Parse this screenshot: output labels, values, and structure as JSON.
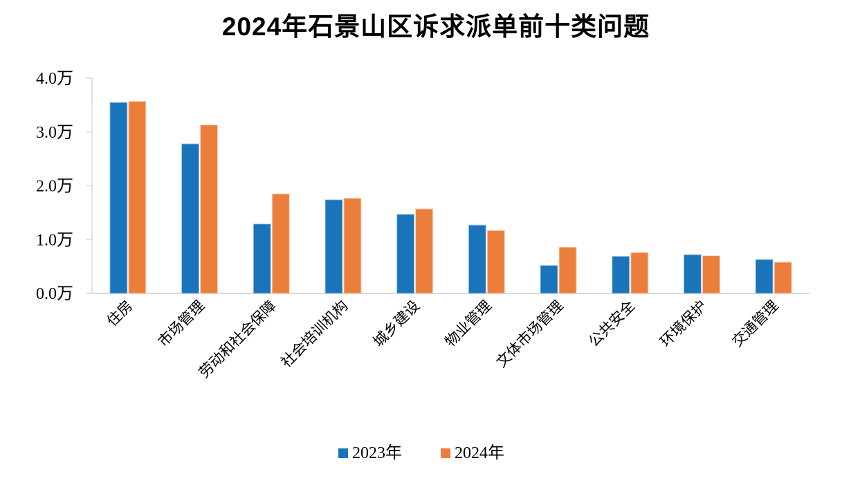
{
  "chart_data": {
    "type": "bar",
    "title": "2024年石景山区诉求派单前十类问题",
    "unit": "万",
    "categories": [
      "住房",
      "市场管理",
      "劳动和社会保障",
      "社会培训机构",
      "城乡建设",
      "物业管理",
      "文体市场管理",
      "公共安全",
      "环境保护",
      "交通管理"
    ],
    "series": [
      {
        "name": "2023年",
        "color": "#1A74B9",
        "edge_color": "#A9CBE9",
        "values": [
          3.55,
          2.78,
          1.29,
          1.74,
          1.47,
          1.27,
          0.52,
          0.69,
          0.72,
          0.63
        ]
      },
      {
        "name": "2024年",
        "color": "#EC7E3C",
        "edge_color": "#F8D4BA",
        "values": [
          3.57,
          3.13,
          1.85,
          1.77,
          1.57,
          1.17,
          0.86,
          0.76,
          0.7,
          0.58
        ]
      }
    ],
    "ylim": [
      0,
      4
    ],
    "y_tick_labels": [
      "0.0万",
      "1.0万",
      "2.0万",
      "3.0万",
      "4.0万"
    ],
    "grid": false,
    "legend_position": "bottom",
    "axis_color": "#D9D9D9",
    "x_label_rotation_deg": -45
  }
}
